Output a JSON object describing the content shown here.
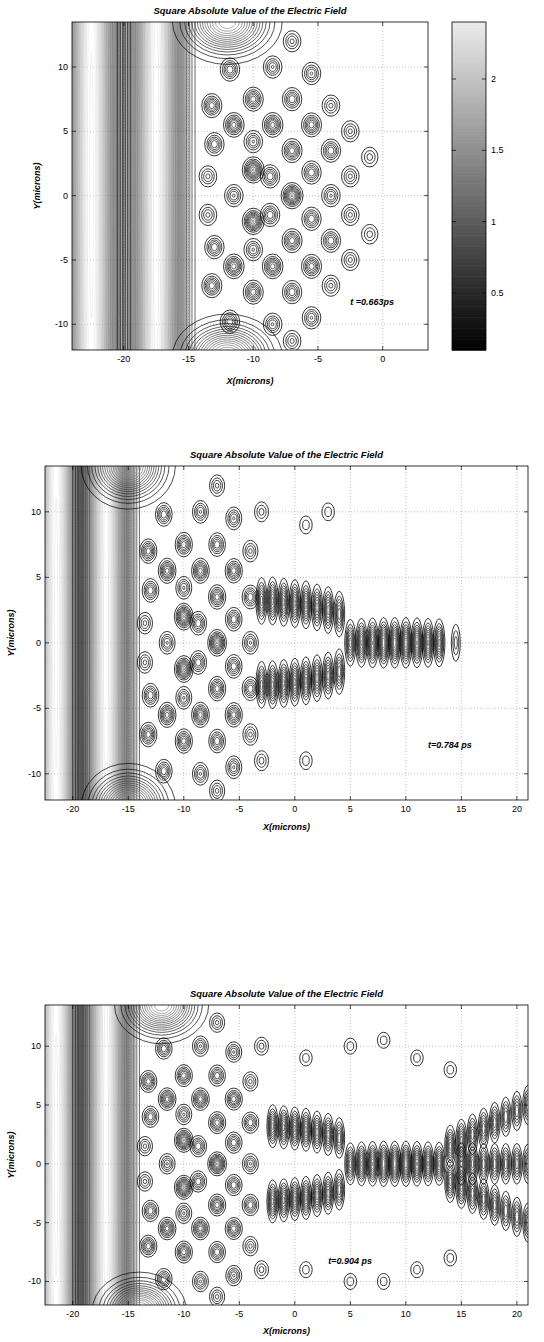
{
  "chart_data": [
    {
      "type": "contour",
      "title": "Square Absolute Value of the Electric Field",
      "x_label": "X(microns)",
      "y_label": "Y(microns)",
      "xlim": [
        -24,
        3.5
      ],
      "ylim": [
        -12,
        13.5
      ],
      "xticks": [
        -20,
        -15,
        -10,
        -5,
        0
      ],
      "yticks": [
        -10,
        -5,
        0,
        5,
        10
      ],
      "grid": true,
      "annotation": {
        "text": "t =0.663ps",
        "x": -2.5,
        "y": -8.5
      },
      "colorbar": {
        "lim": [
          0.1,
          2.4
        ],
        "ticks": [
          0.5,
          1,
          1.5,
          2
        ]
      },
      "bands": {
        "x": [
          -22.5,
          -17.5
        ],
        "values": [
          2.4,
          2.3
        ]
      },
      "lobes": {
        "x": [
          -12,
          -12
        ],
        "y": [
          13.5,
          -12.5
        ],
        "values": [
          1.6,
          1.6
        ]
      },
      "spots": {
        "x": [
          -13.2,
          -13.2,
          -13,
          -13,
          -13.5,
          -13.5,
          -11.8,
          -11.8,
          -11.5,
          -11.5,
          -11.5,
          -10,
          -10,
          -10,
          -10,
          -10,
          -10,
          -8.5,
          -8.5,
          -8.7,
          -8.7,
          -8.5,
          -8.5,
          -7,
          -7,
          -7,
          -7,
          -7,
          -7,
          -7,
          -5.5,
          -5.5,
          -5.5,
          -5.5,
          -5.5,
          -5.5,
          -4,
          -4,
          -4,
          -4,
          -4,
          -2.5,
          -2.5,
          -2.5,
          -2.5,
          -1,
          -1
        ],
        "y": [
          7,
          -7,
          4,
          -4,
          1.5,
          -1.5,
          9.8,
          -9.8,
          5.5,
          -5.5,
          0,
          2,
          -2,
          7.5,
          -7.5,
          4.2,
          -4.2,
          5.5,
          -5.5,
          1.5,
          -1.5,
          10,
          -10,
          0,
          3.5,
          -3.5,
          7.5,
          -7.5,
          12,
          -11.3,
          5.5,
          -5.5,
          1.8,
          -1.8,
          9.5,
          -9.5,
          3.5,
          -3.5,
          0,
          7,
          -7,
          5,
          -5,
          1.5,
          -1.5,
          3,
          -3
        ],
        "values": [
          0.8,
          0.8,
          0.7,
          0.7,
          0.5,
          0.5,
          0.7,
          0.7,
          0.9,
          0.9,
          0.6,
          1.2,
          1.2,
          0.8,
          0.8,
          0.6,
          0.6,
          0.9,
          0.9,
          0.7,
          0.7,
          0.6,
          0.6,
          1.2,
          0.8,
          0.8,
          0.7,
          0.7,
          0.5,
          0.5,
          0.8,
          0.8,
          0.7,
          0.7,
          0.6,
          0.6,
          0.7,
          0.7,
          0.6,
          0.5,
          0.5,
          0.5,
          0.5,
          0.5,
          0.5,
          0.4,
          0.4
        ]
      }
    },
    {
      "type": "contour",
      "title": "Square Absolute Value of the Electric Field",
      "x_label": "X(microns)",
      "y_label": "Y(microns)",
      "xlim": [
        -22.5,
        21
      ],
      "ylim": [
        -12,
        13.5
      ],
      "xticks": [
        -20,
        -15,
        -10,
        -5,
        0,
        5,
        10,
        15,
        20
      ],
      "yticks": [
        -10,
        -5,
        0,
        5,
        10
      ],
      "grid": true,
      "annotation": {
        "text": "t=0.784 ps",
        "x": 12,
        "y": -8
      },
      "bands": {
        "x": [
          -21.5,
          -17
        ],
        "values": [
          2.4,
          2.3
        ]
      },
      "lobes": {
        "x": [
          -15,
          -15
        ],
        "y": [
          13.5,
          -12.5
        ],
        "values": [
          1.6,
          1.6
        ]
      },
      "spots": {
        "x": [
          -13.2,
          -13.2,
          -13,
          -13,
          -13.5,
          -13.5,
          -11.8,
          -11.8,
          -11.5,
          -11.5,
          -11.5,
          -10,
          -10,
          -10,
          -10,
          -10,
          -10,
          -8.5,
          -8.5,
          -8.7,
          -8.7,
          -8.5,
          -8.5,
          -7,
          -7,
          -7,
          -7,
          -7,
          -7,
          -7,
          -5.5,
          -5.5,
          -5.5,
          -5.5,
          -5.5,
          -5.5,
          -4,
          -4,
          -4,
          -4,
          -4,
          -3,
          -3,
          1,
          3,
          1
        ],
        "y": [
          7,
          -7,
          4,
          -4,
          1.5,
          -1.5,
          9.8,
          -9.8,
          5.5,
          -5.5,
          0,
          2,
          -2,
          7.5,
          -7.5,
          4.2,
          -4.2,
          5.5,
          -5.5,
          1.5,
          -1.5,
          10,
          -10,
          0,
          3.5,
          -3.5,
          7.5,
          -7.5,
          12,
          -11.3,
          5.5,
          -5.5,
          1.8,
          -1.8,
          9.5,
          -9.5,
          3.5,
          -3.5,
          0,
          7,
          -7,
          10,
          -9,
          9,
          10,
          -9
        ],
        "values": [
          0.8,
          0.8,
          0.7,
          0.7,
          0.5,
          0.5,
          0.7,
          0.7,
          0.9,
          0.9,
          0.6,
          1.2,
          1.2,
          0.8,
          0.8,
          0.6,
          0.6,
          0.9,
          0.9,
          0.7,
          0.7,
          0.6,
          0.6,
          1.2,
          0.8,
          0.8,
          0.7,
          0.7,
          0.5,
          0.5,
          0.8,
          0.8,
          0.7,
          0.7,
          0.6,
          0.6,
          0.7,
          0.7,
          0.6,
          0.5,
          0.5,
          0.4,
          0.4,
          0.3,
          0.3,
          0.3
        ]
      },
      "beam": {
        "x": [
          -3,
          -2,
          -1,
          0,
          1,
          2,
          3,
          4,
          -3,
          -2,
          -1,
          0,
          1,
          2,
          3,
          4,
          5,
          6,
          7,
          8,
          9,
          10,
          11,
          12,
          13,
          14.5
        ],
        "y": [
          3.2,
          3.2,
          3.1,
          3,
          2.9,
          2.7,
          2.5,
          2.2,
          -3.2,
          -3.2,
          -3.1,
          -3,
          -2.9,
          -2.7,
          -2.5,
          -2.2,
          0,
          0,
          0,
          0,
          0,
          0,
          0,
          0,
          0,
          0
        ],
        "values": [
          0.9,
          1,
          1,
          1,
          1,
          0.9,
          0.9,
          0.8,
          0.9,
          1,
          1,
          1,
          1,
          0.9,
          0.9,
          0.8,
          0.9,
          1.1,
          1.2,
          1.3,
          1.3,
          1.3,
          1.2,
          1.1,
          1,
          0.4
        ]
      }
    },
    {
      "type": "contour",
      "title": "Square Absolute Value of the Electric Field",
      "x_label": "X(microns)",
      "y_label": "Y(microns)",
      "xlim": [
        -22.5,
        21
      ],
      "ylim": [
        -12,
        13.5
      ],
      "xticks": [
        -20,
        -15,
        -10,
        -5,
        0,
        5,
        10,
        15,
        20
      ],
      "yticks": [
        -10,
        -5,
        0,
        5,
        10
      ],
      "grid": true,
      "annotation": {
        "text": "t=0.904 ps",
        "x": 3,
        "y": -8.5
      },
      "bands": {
        "x": [
          -21.5,
          -17
        ],
        "values": [
          2.4,
          2.3
        ]
      },
      "lobes": {
        "x": [
          -12,
          -14
        ],
        "y": [
          13.5,
          -12.5
        ],
        "values": [
          1.6,
          1.6
        ]
      },
      "spots": {
        "x": [
          -13.2,
          -13.2,
          -13,
          -13,
          -13.5,
          -13.5,
          -11.8,
          -11.8,
          -11.5,
          -11.5,
          -11.5,
          -10,
          -10,
          -10,
          -10,
          -10,
          -10,
          -8.5,
          -8.5,
          -8.7,
          -8.7,
          -8.5,
          -8.5,
          -7,
          -7,
          -7,
          -7,
          -7,
          -7,
          -7,
          -5.5,
          -5.5,
          -5.5,
          -5.5,
          -5.5,
          -5.5,
          -4,
          -4,
          -4,
          -4,
          -4,
          -3,
          -3,
          1,
          5,
          8,
          11,
          14,
          1,
          5,
          8,
          11,
          14
        ],
        "y": [
          7,
          -7,
          4,
          -4,
          1.5,
          -1.5,
          9.8,
          -9.8,
          5.5,
          -5.5,
          0,
          2,
          -2,
          7.5,
          -7.5,
          4.2,
          -4.2,
          5.5,
          -5.5,
          1.5,
          -1.5,
          10,
          -10,
          0,
          3.5,
          -3.5,
          7.5,
          -7.5,
          12,
          -11.3,
          5.5,
          -5.5,
          1.8,
          -1.8,
          9.5,
          -9.5,
          3.5,
          -3.5,
          0,
          7,
          -7,
          10,
          -9,
          9,
          10,
          10.5,
          9,
          8,
          -9,
          -10,
          -10,
          -9,
          -8
        ],
        "values": [
          0.8,
          0.8,
          0.7,
          0.7,
          0.5,
          0.5,
          0.7,
          0.7,
          0.9,
          0.9,
          0.6,
          1.2,
          1.2,
          0.8,
          0.8,
          0.6,
          0.6,
          0.9,
          0.9,
          0.7,
          0.7,
          0.6,
          0.6,
          1.2,
          0.8,
          0.8,
          0.7,
          0.7,
          0.5,
          0.5,
          0.8,
          0.8,
          0.7,
          0.7,
          0.6,
          0.6,
          0.7,
          0.7,
          0.6,
          0.5,
          0.5,
          0.4,
          0.4,
          0.3,
          0.3,
          0.3,
          0.3,
          0.3,
          0.3,
          0.3,
          0.3,
          0.3,
          0.3
        ]
      },
      "beam": {
        "x": [
          -2,
          -1,
          0,
          1,
          2,
          3,
          4,
          -2,
          -1,
          0,
          1,
          2,
          3,
          4,
          5,
          6,
          7,
          8,
          9,
          10,
          11,
          12,
          13,
          14,
          15,
          16,
          17,
          18,
          19,
          20,
          21,
          14,
          15,
          16,
          17,
          18,
          19,
          20,
          21,
          15,
          16,
          17,
          18,
          19,
          20,
          21
        ],
        "y": [
          3.2,
          3.1,
          3,
          2.9,
          2.7,
          2.5,
          2.2,
          -3.2,
          -3.1,
          -3,
          -2.9,
          -2.7,
          -2.5,
          -2.2,
          0,
          0,
          0,
          0,
          0,
          0,
          0,
          0,
          0,
          1.5,
          2,
          2.5,
          3,
          3.5,
          4,
          4.5,
          5,
          -1.5,
          -2,
          -2.5,
          -3,
          -3.5,
          -4,
          -4.5,
          -5,
          0,
          0,
          0,
          0,
          0,
          0,
          0
        ],
        "values": [
          1,
          1,
          1,
          1,
          0.9,
          0.9,
          0.8,
          1,
          1,
          1,
          1,
          0.9,
          0.9,
          0.8,
          0.9,
          1.1,
          1.2,
          1.3,
          1.3,
          1.3,
          1.2,
          1.1,
          1,
          0.9,
          0.9,
          0.8,
          0.8,
          0.8,
          0.7,
          0.7,
          0.7,
          0.9,
          0.9,
          0.8,
          0.8,
          0.8,
          0.7,
          0.7,
          0.7,
          0.9,
          0.9,
          0.8,
          0.8,
          0.8,
          0.8,
          0.7
        ]
      }
    }
  ]
}
